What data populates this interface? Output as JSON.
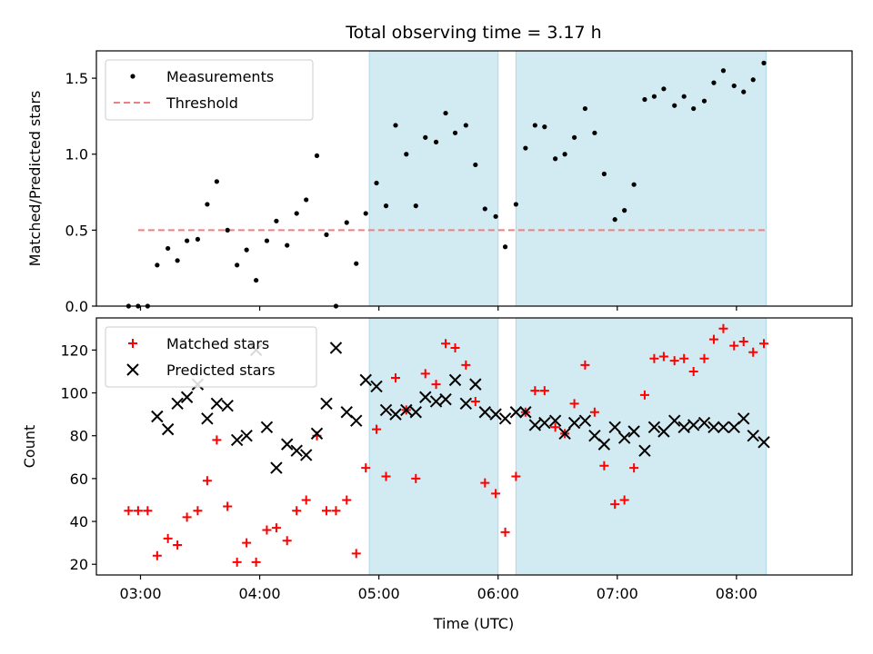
{
  "title": "Total observing time = 3.17 h",
  "xlabel": "Time (UTC)",
  "x_ticks": [
    "03:00",
    "04:00",
    "05:00",
    "06:00",
    "07:00",
    "08:00"
  ],
  "colors": {
    "span": "#add8e6",
    "threshold": "#f08080",
    "matched": "#ff0000",
    "predicted": "#000000",
    "measure": "#000000"
  },
  "chart_data": [
    {
      "type": "scatter",
      "ylabel": "Matched/Predicted stars",
      "ylim": [
        0,
        1.68
      ],
      "y_ticks": [
        0.0,
        0.5,
        1.0,
        1.5
      ],
      "xlim_hours": [
        2.63,
        8.97
      ],
      "shaded_intervals_hours": [
        [
          4.92,
          6.0
        ],
        [
          6.15,
          8.25
        ]
      ],
      "threshold": {
        "value": 0.5,
        "x_from": 2.98,
        "x_to": 8.25
      },
      "legend": {
        "position": "top-left",
        "entries": [
          {
            "label": "Measurements",
            "marker": "dot"
          },
          {
            "label": "Threshold",
            "marker": "dashed-line"
          }
        ]
      },
      "series": [
        {
          "name": "Measurements",
          "marker": "dot",
          "x": [
            2.9,
            2.98,
            3.06,
            3.14,
            3.23,
            3.31,
            3.39,
            3.48,
            3.56,
            3.64,
            3.73,
            3.81,
            3.89,
            3.97,
            4.06,
            4.14,
            4.23,
            4.31,
            4.39,
            4.48,
            4.56,
            4.64,
            4.73,
            4.81,
            4.89,
            4.98,
            5.06,
            5.14,
            5.23,
            5.31,
            5.39,
            5.48,
            5.56,
            5.64,
            5.73,
            5.81,
            5.89,
            5.98,
            6.06,
            6.15,
            6.23,
            6.31,
            6.39,
            6.48,
            6.56,
            6.64,
            6.73,
            6.81,
            6.89,
            6.98,
            7.06,
            7.14,
            7.23,
            7.31,
            7.39,
            7.48,
            7.56,
            7.64,
            7.73,
            7.81,
            7.89,
            7.98,
            8.06,
            8.14,
            8.23
          ],
          "y": [
            0.0,
            0.0,
            0.0,
            0.27,
            0.38,
            0.3,
            0.43,
            0.44,
            0.67,
            0.82,
            0.5,
            0.27,
            0.37,
            0.17,
            0.43,
            0.56,
            0.4,
            0.61,
            0.7,
            0.99,
            0.47,
            0.0,
            0.55,
            0.28,
            0.61,
            0.81,
            0.66,
            1.19,
            1.0,
            0.66,
            1.11,
            1.08,
            1.27,
            1.14,
            1.19,
            0.93,
            0.64,
            0.59,
            0.39,
            0.67,
            1.04,
            1.19,
            1.18,
            0.97,
            1.0,
            1.11,
            1.3,
            1.14,
            0.87,
            0.57,
            0.63,
            0.8,
            1.36,
            1.38,
            1.43,
            1.32,
            1.38,
            1.3,
            1.35,
            1.47,
            1.55,
            1.45,
            1.41,
            1.49,
            1.6
          ]
        }
      ]
    },
    {
      "type": "scatter",
      "ylabel": "Count",
      "ylim": [
        15,
        135
      ],
      "y_ticks": [
        20,
        40,
        60,
        80,
        100,
        120
      ],
      "xlim_hours": [
        2.63,
        8.97
      ],
      "shaded_intervals_hours": [
        [
          4.92,
          6.0
        ],
        [
          6.15,
          8.25
        ]
      ],
      "legend": {
        "position": "top-left",
        "entries": [
          {
            "label": "Matched stars",
            "marker": "plus"
          },
          {
            "label": "Predicted stars",
            "marker": "x"
          }
        ]
      },
      "series": [
        {
          "name": "Matched stars",
          "marker": "plus",
          "x": [
            2.9,
            2.98,
            3.06,
            3.14,
            3.23,
            3.31,
            3.39,
            3.48,
            3.56,
            3.64,
            3.73,
            3.81,
            3.89,
            3.97,
            4.06,
            4.14,
            4.23,
            4.31,
            4.39,
            4.48,
            4.56,
            4.64,
            4.73,
            4.81,
            4.89,
            4.98,
            5.06,
            5.14,
            5.23,
            5.31,
            5.39,
            5.48,
            5.56,
            5.64,
            5.73,
            5.81,
            5.89,
            5.98,
            6.06,
            6.15,
            6.23,
            6.31,
            6.39,
            6.48,
            6.56,
            6.64,
            6.73,
            6.81,
            6.89,
            6.98,
            7.06,
            7.14,
            7.23,
            7.31,
            7.39,
            7.48,
            7.56,
            7.64,
            7.73,
            7.81,
            7.89,
            7.98,
            8.06,
            8.14,
            8.23
          ],
          "y": [
            45,
            45,
            45,
            24,
            32,
            29,
            42,
            45,
            59,
            78,
            47,
            21,
            30,
            21,
            36,
            37,
            31,
            45,
            50,
            80,
            45,
            45,
            50,
            25,
            65,
            83,
            61,
            107,
            92,
            60,
            109,
            104,
            123,
            121,
            113,
            96,
            58,
            53,
            35,
            61,
            91,
            101,
            101,
            84,
            81,
            95,
            113,
            91,
            66,
            48,
            50,
            65,
            99,
            116,
            117,
            115,
            116,
            110,
            116,
            125,
            130,
            122,
            124,
            119,
            123
          ]
        },
        {
          "name": "Predicted stars",
          "marker": "x",
          "x": [
            3.14,
            3.23,
            3.31,
            3.39,
            3.48,
            3.56,
            3.64,
            3.73,
            3.81,
            3.89,
            3.97,
            4.06,
            4.14,
            4.23,
            4.31,
            4.39,
            4.48,
            4.56,
            4.64,
            4.73,
            4.81,
            4.89,
            4.98,
            5.06,
            5.14,
            5.23,
            5.31,
            5.39,
            5.48,
            5.56,
            5.64,
            5.73,
            5.81,
            5.89,
            5.98,
            6.06,
            6.15,
            6.23,
            6.31,
            6.39,
            6.48,
            6.56,
            6.64,
            6.73,
            6.81,
            6.89,
            6.98,
            7.06,
            7.14,
            7.23,
            7.31,
            7.39,
            7.48,
            7.56,
            7.64,
            7.73,
            7.81,
            7.89,
            7.98,
            8.06,
            8.14,
            8.23
          ],
          "y": [
            89,
            83,
            95,
            98,
            104,
            88,
            95,
            94,
            78,
            80,
            120,
            84,
            65,
            76,
            73,
            71,
            81,
            95,
            121,
            91,
            87,
            106,
            103,
            92,
            90,
            92,
            91,
            98,
            96,
            97,
            106,
            95,
            104,
            91,
            90,
            88,
            91,
            91,
            85,
            86,
            87,
            81,
            86,
            87,
            80,
            76,
            84,
            79,
            82,
            73,
            84,
            82,
            87,
            84,
            85,
            86,
            84,
            84,
            84,
            88,
            80,
            77
          ]
        }
      ]
    }
  ]
}
